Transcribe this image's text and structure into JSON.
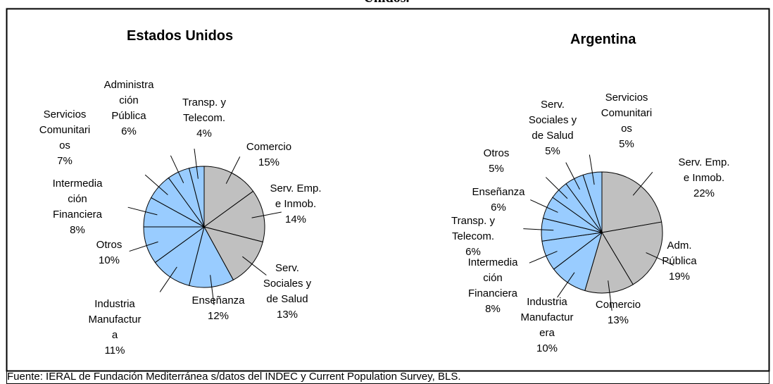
{
  "header": "Unidos.",
  "source": "Fuente: IERAL de Fundación Mediterránea s/datos del INDEC y Current Population Survey, BLS.",
  "chart_data": [
    {
      "type": "pie",
      "title": "Estados Unidos",
      "categories": [
        "Comercio",
        "Serv. Emp. e Inmob.",
        "Serv. Sociales y de Salud",
        "Enseñanza",
        "Industria Manufactura",
        "Otros",
        "Intermediación Financiera",
        "Servicios Comunitarios",
        "Administración Pública",
        "Transp. y Telecom."
      ],
      "values": [
        15,
        14,
        13,
        12,
        11,
        10,
        8,
        7,
        6,
        4
      ],
      "value_labels": [
        "15%",
        "14%",
        "13%",
        "12%",
        "11%",
        "10%",
        "8%",
        "7%",
        "6%",
        "4%"
      ],
      "colors": [
        "#c0c0c0",
        "#c0c0c0",
        "#c0c0c0",
        "#99ccff",
        "#99ccff",
        "#99ccff",
        "#99ccff",
        "#99ccff",
        "#99ccff",
        "#99ccff"
      ]
    },
    {
      "type": "pie",
      "title": "Argentina",
      "categories": [
        "Serv. Emp. e Inmob.",
        "Adm. Pública",
        "Comercio",
        "Industria Manufacturera",
        "Intermediación Financiera",
        "Transp. y Telecom.",
        "Enseñanza",
        "Otros",
        "Serv. Sociales y de Salud",
        "Servicios Comunitarios"
      ],
      "values": [
        22,
        19,
        13,
        10,
        8,
        6,
        6,
        5,
        5,
        5
      ],
      "value_labels": [
        "22%",
        "19%",
        "13%",
        "10%",
        "8%",
        "6%",
        "6%",
        "5%",
        "5%",
        "5%"
      ],
      "colors": [
        "#c0c0c0",
        "#c0c0c0",
        "#c0c0c0",
        "#99ccff",
        "#99ccff",
        "#99ccff",
        "#99ccff",
        "#99ccff",
        "#99ccff",
        "#99ccff"
      ]
    }
  ]
}
